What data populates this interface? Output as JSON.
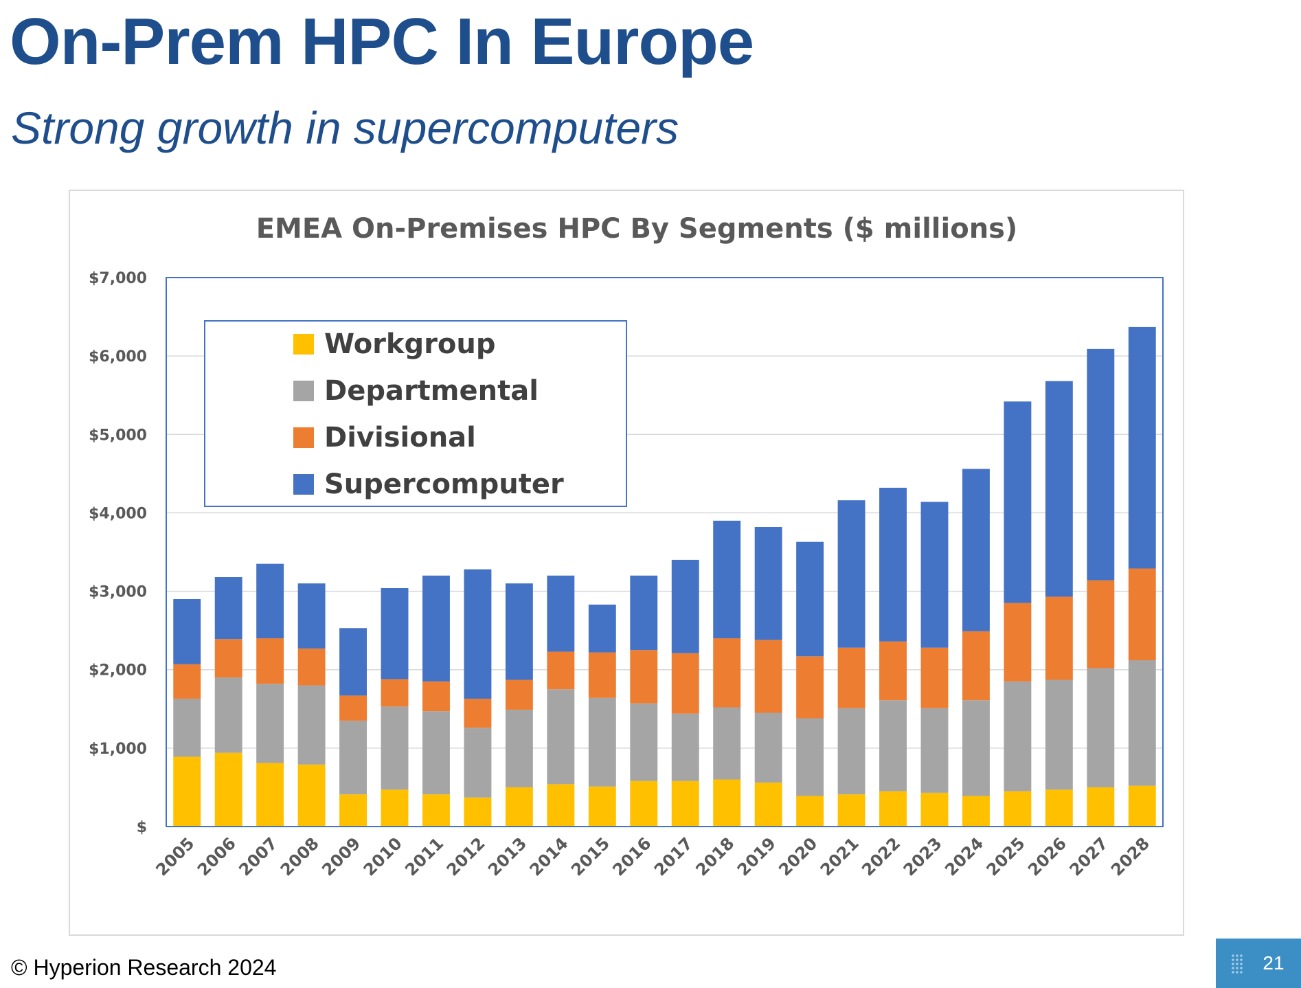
{
  "header": {
    "title": "On-Prem HPC In Europe",
    "subtitle": "Strong growth in supercomputers"
  },
  "footer": {
    "copyright": "© Hyperion Research 2024",
    "page_number": "21"
  },
  "chart_data": {
    "type": "bar",
    "stacked": true,
    "title": "EMEA On-Premises HPC By Segments ($ millions)",
    "xlabel": "",
    "ylabel": "",
    "ylim": [
      0,
      7000
    ],
    "yticks": [
      0,
      1000,
      2000,
      3000,
      4000,
      5000,
      6000,
      7000
    ],
    "ytick_labels": [
      "$",
      "$1,000",
      "$2,000",
      "$3,000",
      "$4,000",
      "$5,000",
      "$6,000",
      "$7,000"
    ],
    "grid": true,
    "legend_position": "top-left",
    "categories": [
      "2005",
      "2006",
      "2007",
      "2008",
      "2009",
      "2010",
      "2011",
      "2012",
      "2013",
      "2014",
      "2015",
      "2016",
      "2017",
      "2018",
      "2019",
      "2020",
      "2021",
      "2022",
      "2023",
      "2024",
      "2025",
      "2026",
      "2027",
      "2028"
    ],
    "series": [
      {
        "name": "Workgroup",
        "color": "#ffc000",
        "values": [
          890,
          940,
          810,
          790,
          410,
          470,
          410,
          370,
          500,
          540,
          510,
          580,
          580,
          600,
          560,
          390,
          410,
          450,
          430,
          390,
          450,
          470,
          500,
          520
        ]
      },
      {
        "name": "Departmental",
        "color": "#a5a5a5",
        "values": [
          740,
          960,
          1010,
          1010,
          940,
          1060,
          1060,
          890,
          990,
          1210,
          1130,
          990,
          860,
          920,
          890,
          990,
          1100,
          1160,
          1080,
          1220,
          1400,
          1400,
          1520,
          1600
        ]
      },
      {
        "name": "Divisional",
        "color": "#ed7d31",
        "values": [
          440,
          490,
          580,
          470,
          320,
          350,
          380,
          370,
          380,
          480,
          580,
          680,
          770,
          880,
          930,
          790,
          770,
          750,
          770,
          880,
          1000,
          1060,
          1120,
          1170
        ]
      },
      {
        "name": "Supercomputer",
        "color": "#4472c4",
        "values": [
          830,
          790,
          950,
          830,
          860,
          1160,
          1350,
          1650,
          1230,
          970,
          610,
          950,
          1190,
          1500,
          1440,
          1460,
          1880,
          1960,
          1860,
          2070,
          2570,
          2750,
          2950,
          3080
        ]
      }
    ]
  }
}
